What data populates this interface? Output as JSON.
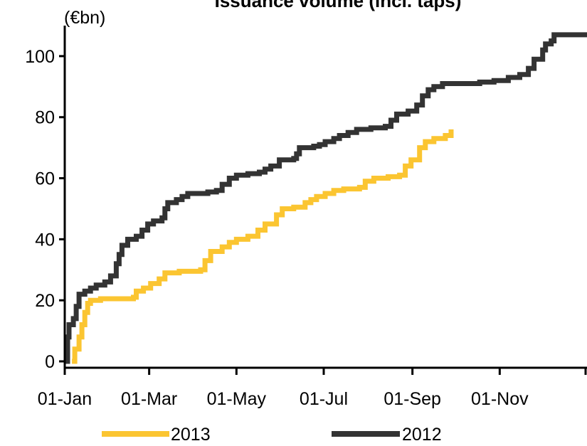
{
  "chart_data": {
    "type": "line",
    "title": "Issuance volume (incl. taps)",
    "ylabel": "(€bn)",
    "xlabel": "",
    "ylim": [
      0,
      110
    ],
    "yticks": [
      "0",
      "20",
      "40",
      "60",
      "80",
      "100"
    ],
    "x_domain_days": [
      0,
      365
    ],
    "x_ticks": [
      {
        "label": "01-Jan",
        "day": 0
      },
      {
        "label": "01-Mar",
        "day": 59
      },
      {
        "label": "01-May",
        "day": 120
      },
      {
        "label": "01-Jul",
        "day": 181
      },
      {
        "label": "01-Sep",
        "day": 243
      },
      {
        "label": "01-Nov",
        "day": 304
      }
    ],
    "grid": false,
    "legend_position": "bottom",
    "series": [
      {
        "name": "2013",
        "color": "#FBC531",
        "points": [
          [
            5,
            0
          ],
          [
            7,
            4
          ],
          [
            10,
            8
          ],
          [
            12,
            12
          ],
          [
            14,
            16
          ],
          [
            16,
            19
          ],
          [
            18,
            20
          ],
          [
            25,
            20.5
          ],
          [
            32,
            20.5
          ],
          [
            48,
            21
          ],
          [
            50,
            23
          ],
          [
            55,
            24
          ],
          [
            60,
            25.5
          ],
          [
            66,
            27
          ],
          [
            70,
            29
          ],
          [
            80,
            29.5
          ],
          [
            95,
            30
          ],
          [
            98,
            33
          ],
          [
            102,
            36
          ],
          [
            110,
            37.5
          ],
          [
            115,
            39
          ],
          [
            120,
            40
          ],
          [
            128,
            41
          ],
          [
            135,
            43
          ],
          [
            140,
            45
          ],
          [
            148,
            48
          ],
          [
            152,
            50
          ],
          [
            160,
            50.5
          ],
          [
            168,
            52
          ],
          [
            172,
            53
          ],
          [
            176,
            54
          ],
          [
            182,
            55
          ],
          [
            188,
            56
          ],
          [
            195,
            56.5
          ],
          [
            206,
            57
          ],
          [
            210,
            59
          ],
          [
            216,
            60
          ],
          [
            226,
            60.5
          ],
          [
            234,
            61
          ],
          [
            238,
            64
          ],
          [
            242,
            66
          ],
          [
            248,
            70
          ],
          [
            252,
            72
          ],
          [
            258,
            73
          ],
          [
            266,
            74
          ],
          [
            270,
            76
          ]
        ]
      },
      {
        "name": "2012",
        "color": "#333333",
        "points": [
          [
            0,
            0
          ],
          [
            2,
            8
          ],
          [
            3,
            12
          ],
          [
            6,
            14
          ],
          [
            8,
            18
          ],
          [
            10,
            22
          ],
          [
            14,
            23
          ],
          [
            18,
            24
          ],
          [
            22,
            25
          ],
          [
            28,
            26
          ],
          [
            32,
            28
          ],
          [
            36,
            32
          ],
          [
            38,
            35
          ],
          [
            40,
            38
          ],
          [
            44,
            40
          ],
          [
            50,
            41
          ],
          [
            54,
            43
          ],
          [
            58,
            45
          ],
          [
            62,
            46
          ],
          [
            68,
            47
          ],
          [
            70,
            50
          ],
          [
            72,
            52
          ],
          [
            78,
            53
          ],
          [
            82,
            54
          ],
          [
            86,
            55
          ],
          [
            100,
            55.5
          ],
          [
            106,
            56
          ],
          [
            110,
            58
          ],
          [
            115,
            60
          ],
          [
            120,
            61
          ],
          [
            128,
            61.5
          ],
          [
            136,
            62
          ],
          [
            140,
            63
          ],
          [
            144,
            64
          ],
          [
            150,
            66
          ],
          [
            160,
            66.5
          ],
          [
            162,
            68
          ],
          [
            164,
            70
          ],
          [
            174,
            70.5
          ],
          [
            178,
            71
          ],
          [
            182,
            72
          ],
          [
            188,
            73
          ],
          [
            192,
            74
          ],
          [
            198,
            75
          ],
          [
            204,
            76
          ],
          [
            214,
            76.5
          ],
          [
            224,
            77
          ],
          [
            228,
            79
          ],
          [
            232,
            81
          ],
          [
            240,
            82
          ],
          [
            246,
            84
          ],
          [
            250,
            87
          ],
          [
            254,
            89
          ],
          [
            258,
            90
          ],
          [
            264,
            91
          ],
          [
            290,
            91.5
          ],
          [
            300,
            92
          ],
          [
            310,
            93
          ],
          [
            318,
            94
          ],
          [
            324,
            96
          ],
          [
            328,
            99
          ],
          [
            334,
            102
          ],
          [
            336,
            104
          ],
          [
            340,
            105
          ],
          [
            342,
            107
          ],
          [
            365,
            107
          ]
        ]
      }
    ]
  }
}
